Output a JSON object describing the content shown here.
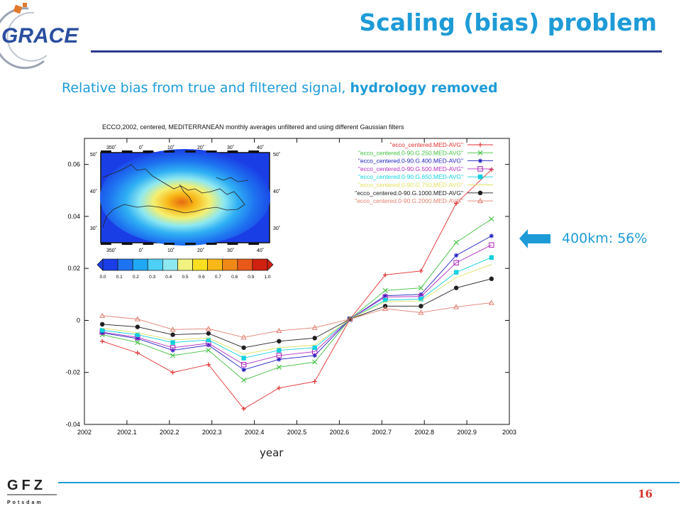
{
  "header": {
    "logo_text": "GRACE",
    "title": "Scaling (bias) problem",
    "subtitle_plain": "Relative bias from true and filtered signal, ",
    "subtitle_bold": "hydrology removed"
  },
  "annotation": {
    "text": "400km: 56%",
    "arrow_color": "#1e9bd7"
  },
  "footer": {
    "logo_text": "GFZ",
    "logo_sub": "Potsdam",
    "page_number": "16"
  },
  "chart_data": {
    "type": "line",
    "title": "ECCO,2002, centered, MEDITERRANEAN monthly averages unfiltered and using different Gaussian filters",
    "xlabel": "year",
    "ylabel": "",
    "xlim": [
      2002,
      2003
    ],
    "ylim": [
      -0.04,
      0.07
    ],
    "x_ticks": [
      "2002",
      "2002.1",
      "2002.2",
      "2002.3",
      "2002.4",
      "2002.5",
      "2002.6",
      "2002.7",
      "2002.8",
      "2002.9",
      "2003"
    ],
    "y_ticks": [
      "-0.04",
      "-0.02",
      "0",
      "0.02",
      "0.04",
      "0.06"
    ],
    "legend_position": "top-right",
    "grid": false,
    "x": [
      2002.042,
      2002.125,
      2002.208,
      2002.292,
      2002.375,
      2002.458,
      2002.542,
      2002.625,
      2002.708,
      2002.792,
      2002.875,
      2002.958
    ],
    "series": [
      {
        "name": "\"ecco_centered.MED-AVG\"",
        "color": "#e03030",
        "marker": "plus",
        "values": [
          -0.008,
          -0.0125,
          -0.02,
          -0.017,
          -0.034,
          -0.026,
          -0.0235,
          0.0005,
          0.0175,
          0.019,
          0.045,
          0.058
        ]
      },
      {
        "name": "\"ecco_centered.0-90.G.250.MED-AVG\"",
        "color": "#40c040",
        "marker": "x",
        "values": [
          -0.0055,
          -0.0085,
          -0.0135,
          -0.0115,
          -0.023,
          -0.018,
          -0.016,
          0.0005,
          0.0115,
          0.0125,
          0.03,
          0.039
        ]
      },
      {
        "name": "\"ecco_centered.0-90.G.400.MED-AVG\"",
        "color": "#2020c0",
        "marker": "star",
        "values": [
          -0.0048,
          -0.007,
          -0.0115,
          -0.0095,
          -0.019,
          -0.015,
          -0.0135,
          0.0005,
          0.0095,
          0.01,
          0.025,
          0.0325
        ]
      },
      {
        "name": "\"ecco_centered.0-90.G.500.MED-AVG\"",
        "color": "#b030c0",
        "marker": "open-square",
        "values": [
          -0.0045,
          -0.0065,
          -0.0105,
          -0.0088,
          -0.017,
          -0.0135,
          -0.012,
          0.0005,
          0.009,
          0.0092,
          0.0222,
          0.029
        ]
      },
      {
        "name": "\"ecco_centered.0-90.G.650.MED-AVG\"",
        "color": "#10d0e0",
        "marker": "filled-square",
        "values": [
          -0.0038,
          -0.0055,
          -0.0085,
          -0.0075,
          -0.0145,
          -0.0115,
          -0.0105,
          0.0005,
          0.0078,
          0.0082,
          0.0185,
          0.0242
        ]
      },
      {
        "name": "\"ecco_centered.0-90.G.750.MED-AVG\"",
        "color": "#e0e060",
        "marker": "none",
        "values": [
          -0.003,
          -0.0048,
          -0.0075,
          -0.0068,
          -0.013,
          -0.0105,
          -0.0095,
          0.0005,
          0.0072,
          0.0075,
          0.0165,
          0.0215
        ]
      },
      {
        "name": "\"ecco_centered.0-90.G.1000.MED-AVG\"",
        "color": "#202020",
        "marker": "filled-circle",
        "values": [
          -0.0015,
          -0.0025,
          -0.0055,
          -0.005,
          -0.0105,
          -0.008,
          -0.0068,
          0.0005,
          0.0055,
          0.0055,
          0.0125,
          0.016
        ]
      },
      {
        "name": "\"ecco_centered.0-90.G.2000.MED-AVG\"",
        "color": "#e08070",
        "marker": "open-triangle",
        "values": [
          0.0018,
          0.0005,
          -0.0035,
          -0.0032,
          -0.0065,
          -0.004,
          -0.0028,
          0.0005,
          0.0045,
          0.003,
          0.0052,
          0.0068
        ]
      }
    ],
    "inset_map": {
      "lon_ticks_top": [
        "350˚",
        "0˚",
        "10˚",
        "20˚",
        "30˚",
        "40˚"
      ],
      "lon_ticks_bottom": [
        "350˚",
        "0˚",
        "10˚",
        "20˚",
        "30˚",
        "40˚"
      ],
      "lat_ticks": [
        "50˚",
        "40˚",
        "30˚"
      ],
      "colorbar_ticks": [
        "0.0",
        "0.1",
        "0.2",
        "0.3",
        "0.4",
        "0.5",
        "0.6",
        "0.7",
        "0.8",
        "0.9",
        "1.0"
      ],
      "colorbar_colors": [
        "#1a3ee6",
        "#1e74f0",
        "#20a8f6",
        "#4ed0f6",
        "#8ee8f0",
        "#f2f280",
        "#f8e020",
        "#f8b818",
        "#f08818",
        "#e85818",
        "#d02010"
      ]
    }
  }
}
